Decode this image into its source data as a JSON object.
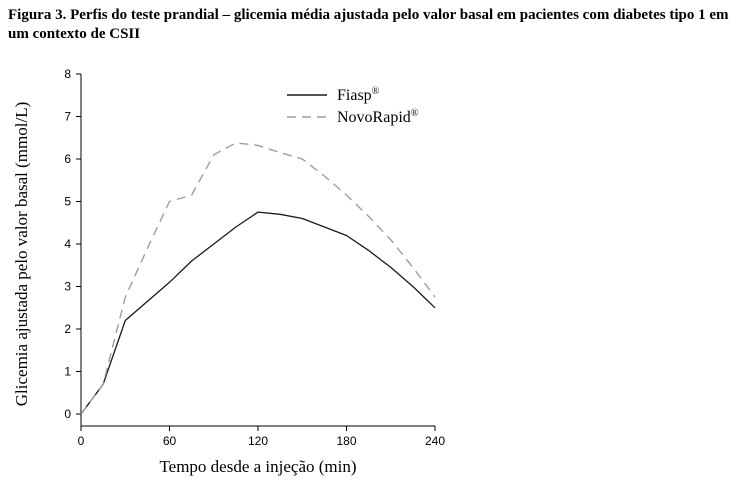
{
  "chart_data": {
    "type": "line",
    "title": "Figura 3. Perfis do teste prandial – glicemia média ajustada pelo valor basal em pacientes com diabetes tipo 1 em um contexto de CSII",
    "xlabel": "Tempo desde a injeção (min)",
    "ylabel": "Glicemia ajustada pelo valor basal (mmol/L)",
    "xlim": [
      0,
      240
    ],
    "ylim": [
      0,
      8
    ],
    "xticks": [
      "0",
      "60",
      "120",
      "180",
      "240"
    ],
    "yticks": [
      "0",
      "1",
      "2",
      "3",
      "4",
      "5",
      "6",
      "7",
      "8"
    ],
    "legend_position": "top-right",
    "grid": false,
    "series": [
      {
        "name": "Fiasp",
        "name_sup": "®",
        "style": "solid",
        "color": "#1a1a1a",
        "x": [
          0,
          15,
          30,
          45,
          60,
          75,
          90,
          105,
          120,
          135,
          150,
          165,
          180,
          195,
          210,
          225,
          240
        ],
        "y": [
          0.0,
          0.7,
          2.2,
          2.65,
          3.1,
          3.6,
          4.0,
          4.4,
          4.75,
          4.7,
          4.6,
          4.4,
          4.2,
          3.85,
          3.45,
          3.0,
          2.5
        ]
      },
      {
        "name": "NovoRapid",
        "name_sup": "®",
        "style": "dashed",
        "color": "#9e9e9e",
        "x": [
          0,
          15,
          30,
          45,
          60,
          75,
          90,
          105,
          120,
          135,
          150,
          165,
          180,
          195,
          210,
          225,
          240
        ],
        "y": [
          0.0,
          0.7,
          2.75,
          3.9,
          5.0,
          5.15,
          6.1,
          6.38,
          6.32,
          6.15,
          6.0,
          5.6,
          5.15,
          4.65,
          4.1,
          3.45,
          2.75
        ]
      }
    ]
  }
}
